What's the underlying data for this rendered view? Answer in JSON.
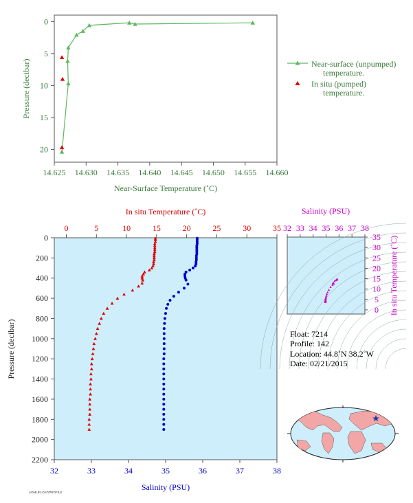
{
  "chart_data": [
    {
      "type": "line",
      "xlabel": "Near-Surface Temperature (˚C)",
      "ylabel": "Pressure (decibar)",
      "xlim": [
        14.625,
        14.66
      ],
      "ylim": [
        22,
        -1
      ],
      "xticks": [
        "14.625",
        "14.630",
        "14.635",
        "14.640",
        "14.645",
        "14.650",
        "14.655",
        "14.660"
      ],
      "yticks": [
        "0",
        "5",
        "10",
        "15",
        "20"
      ],
      "series": [
        {
          "name": "Near-surface (unpumped) temperature.",
          "x": [
            14.6262,
            14.6272,
            14.6271,
            14.6272,
            14.6285,
            14.6295,
            14.6305,
            14.6368,
            14.6377,
            14.6562
          ],
          "y": [
            20.4,
            9.7,
            6.2,
            4.1,
            2.1,
            1.5,
            0.6,
            0.2,
            0.4,
            0.2
          ]
        },
        {
          "name": "In situ (pumped) temperature.",
          "x": [
            14.6262,
            14.6263,
            14.6262
          ],
          "y": [
            5.6,
            9.0,
            19.7
          ]
        }
      ],
      "legend": [
        {
          "line1": "Near-surface (unpumped)",
          "line2": "temperature."
        },
        {
          "line1": "In situ (pumped)",
          "line2": "temperature."
        }
      ]
    },
    {
      "type": "scatter",
      "ylabel": "Pressure (decibar)",
      "top_xlabel": "In situ Temperature (˚C)",
      "bottom_xlabel": "Salinity (PSU)",
      "temp_lim": [
        -2,
        35
      ],
      "sal_lim": [
        32,
        38
      ],
      "ylim": [
        2200,
        0
      ],
      "temp_ticks": [
        "0",
        "5",
        "10",
        "15",
        "20",
        "25",
        "30",
        "35"
      ],
      "sal_ticks": [
        "32",
        "33",
        "34",
        "35",
        "36",
        "37",
        "38"
      ],
      "yticks": [
        "0",
        "200",
        "400",
        "600",
        "800",
        "1000",
        "1200",
        "1400",
        "1600",
        "1800",
        "2000",
        "2200"
      ],
      "temperature": {
        "pressure": [
          5,
          20,
          40,
          60,
          80,
          100,
          120,
          140,
          160,
          180,
          200,
          220,
          240,
          260,
          280,
          300,
          320,
          340,
          360,
          380,
          400,
          420,
          450,
          480,
          520,
          560,
          600,
          650,
          700,
          750,
          800,
          850,
          900,
          950,
          1000,
          1050,
          1100,
          1150,
          1200,
          1250,
          1300,
          1350,
          1400,
          1450,
          1500,
          1550,
          1600,
          1650,
          1700,
          1750,
          1800,
          1850,
          1900
        ],
        "values": [
          14.8,
          14.8,
          14.8,
          14.7,
          14.7,
          14.7,
          14.7,
          14.7,
          14.6,
          14.6,
          14.6,
          14.6,
          14.5,
          14.5,
          14.4,
          14.2,
          13.8,
          13.0,
          12.8,
          12.6,
          12.6,
          12.7,
          12.6,
          12.0,
          11.0,
          9.6,
          8.5,
          7.6,
          6.8,
          6.2,
          5.8,
          5.5,
          5.2,
          5.0,
          4.8,
          4.6,
          4.5,
          4.4,
          4.3,
          4.2,
          4.2,
          4.1,
          4.1,
          4.0,
          4.0,
          4.0,
          3.9,
          3.9,
          3.9,
          3.9,
          3.8,
          3.8,
          3.8
        ]
      },
      "salinity": {
        "pressure": [
          5,
          20,
          40,
          60,
          80,
          100,
          120,
          140,
          160,
          180,
          200,
          220,
          240,
          260,
          280,
          300,
          320,
          340,
          360,
          380,
          400,
          420,
          460,
          500,
          540,
          580,
          620,
          660,
          700,
          750,
          800,
          850,
          900,
          950,
          1000,
          1050,
          1100,
          1150,
          1200,
          1250,
          1300,
          1350,
          1400,
          1450,
          1500,
          1550,
          1600,
          1650,
          1700,
          1750,
          1800,
          1850,
          1900
        ],
        "values": [
          35.85,
          35.85,
          35.85,
          35.85,
          35.84,
          35.84,
          35.84,
          35.84,
          35.84,
          35.83,
          35.83,
          35.83,
          35.82,
          35.82,
          35.8,
          35.74,
          35.65,
          35.55,
          35.52,
          35.52,
          35.53,
          35.55,
          35.6,
          35.5,
          35.35,
          35.22,
          35.12,
          35.06,
          35.02,
          35.0,
          34.98,
          34.97,
          34.96,
          34.96,
          34.96,
          34.96,
          34.96,
          34.96,
          34.95,
          34.95,
          34.95,
          34.95,
          34.95,
          34.95,
          34.95,
          34.95,
          34.95,
          34.95,
          34.95,
          34.95,
          34.95,
          34.95,
          34.95
        ]
      }
    },
    {
      "type": "scatter",
      "top_xlabel": "Salinity (PSU)",
      "ylabel": "In situ Temperature (˚C)",
      "sal_lim": [
        32,
        38
      ],
      "temp_lim": [
        -2,
        35
      ],
      "sal_ticks": [
        "32",
        "33",
        "34",
        "35",
        "36",
        "37",
        "38"
      ],
      "temp_ticks": [
        "0",
        "5",
        "10",
        "15",
        "20",
        "25",
        "30",
        "35"
      ]
    }
  ],
  "float_info": {
    "float": "Float:  7214",
    "profile": "Profile:  142",
    "location": "Location:  44.8˚N  38.2˚W",
    "date": "Date:  02/21/2015"
  },
  "footer_text": "AOML/FLOAT/PROFILE",
  "colors": {
    "green": "#3a7a3a",
    "line_green": "#5cb85c",
    "red": "#e00000",
    "blue": "#0000cc",
    "magenta": "#cc00cc",
    "ocean": "#cdeefa"
  }
}
